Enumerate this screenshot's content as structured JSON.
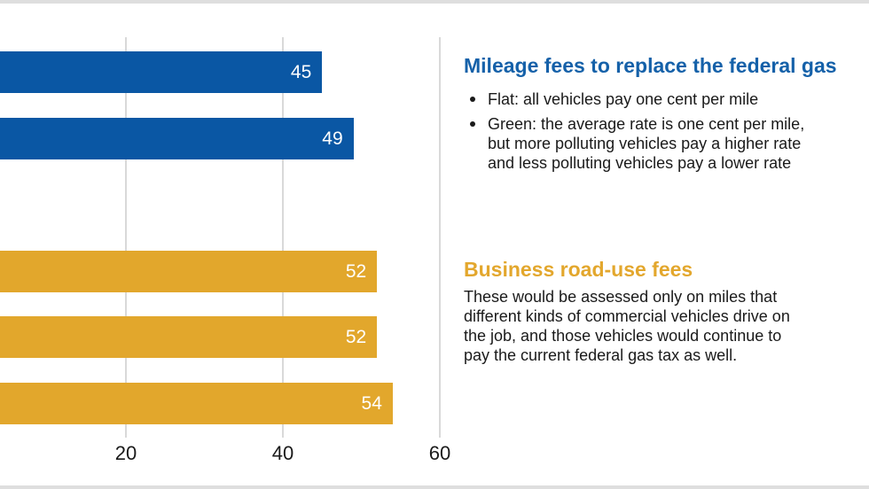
{
  "chart_data": {
    "type": "bar",
    "orientation": "horizontal",
    "title": "",
    "xlabel": "",
    "ylabel": "",
    "x_tick_values": [
      20,
      40,
      60
    ],
    "x_ticks": [
      "20",
      "40",
      "60"
    ],
    "grid": "vertical gridlines on, left axis cropped off-screen",
    "bar_label_position": "inside end",
    "bar_label_color": "#ffffff",
    "axis_text_color": "#1a1a1a",
    "groups": [
      {
        "name": "mileage-fees",
        "color": "#0a57a4",
        "bars": [
          {
            "row": 0,
            "value": 45
          },
          {
            "row": 1,
            "value": 49
          }
        ]
      },
      {
        "name": "business-road-use-fees",
        "color": "#e2a72c",
        "bars": [
          {
            "row": 3,
            "value": 52
          },
          {
            "row": 4,
            "value": 52
          },
          {
            "row": 5,
            "value": 54
          }
        ]
      }
    ]
  },
  "annotations": {
    "mileage": {
      "heading": "Mileage fees to replace the federal gas",
      "heading_color": "#1561a9",
      "bullets": [
        "Flat: all vehicles pay one cent per mile",
        "Green: the average rate is one cent per mile,\nbut more polluting vehicles pay a higher rate\nand less polluting vehicles pay a lower rate"
      ]
    },
    "business": {
      "heading": "Business road-use fees",
      "heading_color": "#e3a72d",
      "body": "These would be assessed only on miles that\ndifferent kinds of commercial vehicles drive on\nthe job, and those vehicles would continue to\npay the current federal gas tax as well."
    }
  },
  "decor": {
    "top_border_color": "#dedede",
    "bottom_border_color": "#dedede",
    "gridline_color": "#d9d9d9"
  }
}
